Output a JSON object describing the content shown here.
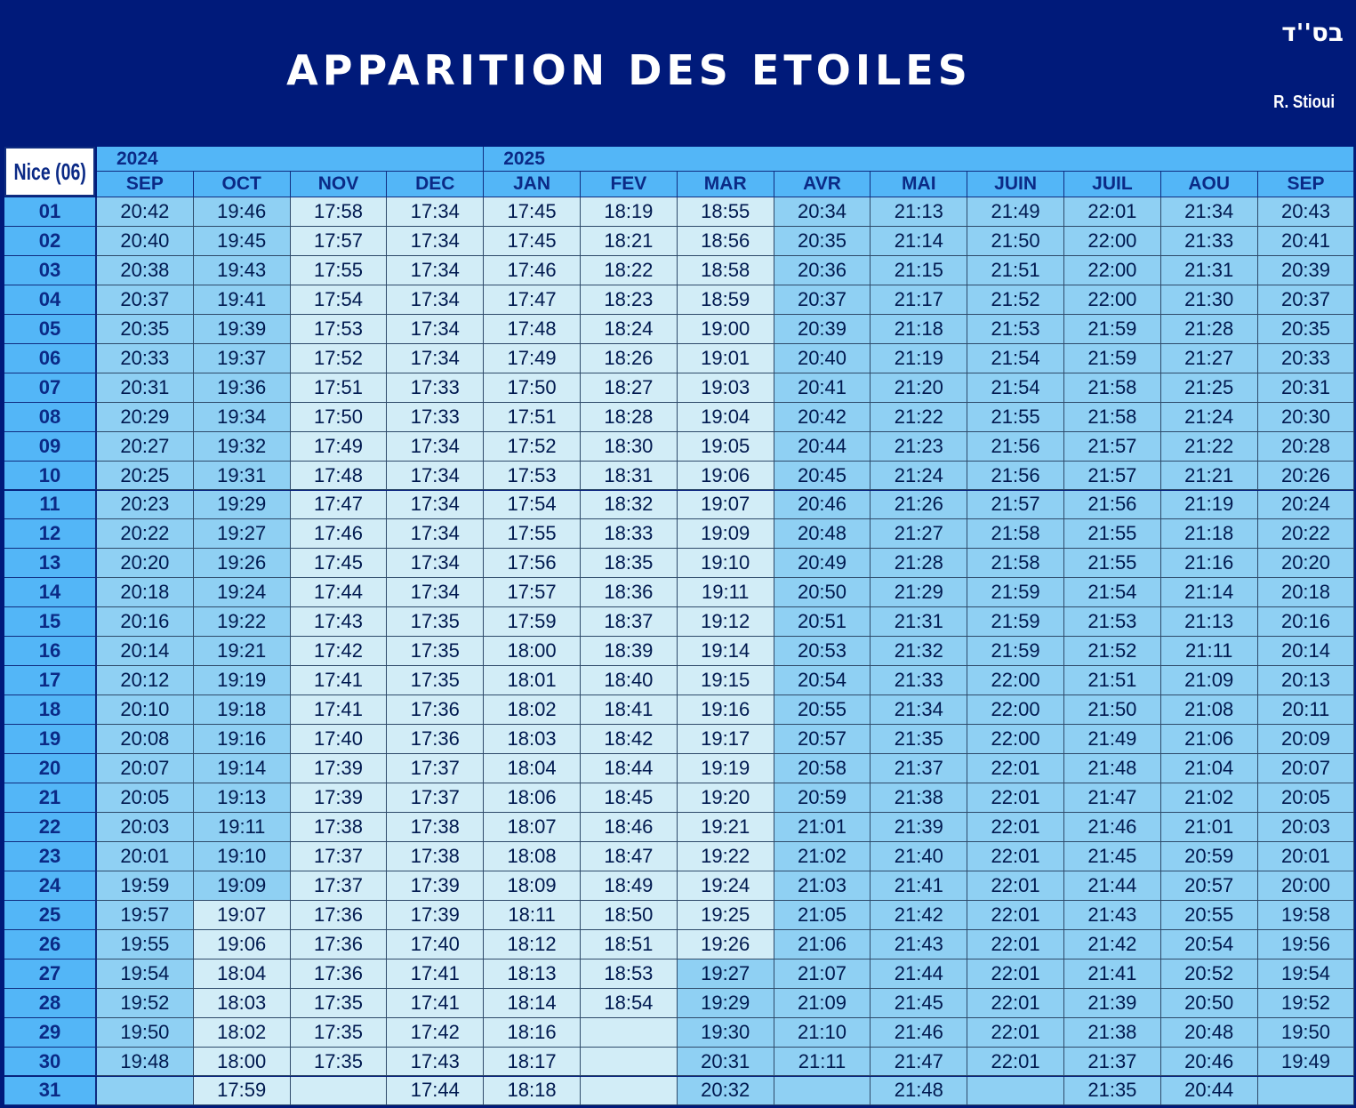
{
  "header": {
    "title": "APPARITION DES ETOILES",
    "hebrew": "בס''ד",
    "author": "R. Stioui",
    "city": "Nice (06)"
  },
  "colors": {
    "navy": "#001a7a",
    "header_blue": "#53b6f7",
    "mid_blue": "#8fd0f3",
    "pale_blue": "#d2edf7"
  },
  "table": {
    "years": [
      {
        "label": "2024",
        "span": 4
      },
      {
        "label": "2025",
        "span": 9
      }
    ],
    "months": [
      "SEP",
      "OCT",
      "NOV",
      "DEC",
      "JAN",
      "FEV",
      "MAR",
      "AVR",
      "MAI",
      "JUIN",
      "JUIL",
      "AOU",
      "SEP"
    ],
    "days": [
      "01",
      "02",
      "03",
      "04",
      "05",
      "06",
      "07",
      "08",
      "09",
      "10",
      "11",
      "12",
      "13",
      "14",
      "15",
      "16",
      "17",
      "18",
      "19",
      "20",
      "21",
      "22",
      "23",
      "24",
      "25",
      "26",
      "27",
      "28",
      "29",
      "30",
      "31"
    ],
    "columns": [
      [
        "20:42",
        "20:40",
        "20:38",
        "20:37",
        "20:35",
        "20:33",
        "20:31",
        "20:29",
        "20:27",
        "20:25",
        "20:23",
        "20:22",
        "20:20",
        "20:18",
        "20:16",
        "20:14",
        "20:12",
        "20:10",
        "20:08",
        "20:07",
        "20:05",
        "20:03",
        "20:01",
        "19:59",
        "19:57",
        "19:55",
        "19:54",
        "19:52",
        "19:50",
        "19:48",
        ""
      ],
      [
        "19:46",
        "19:45",
        "19:43",
        "19:41",
        "19:39",
        "19:37",
        "19:36",
        "19:34",
        "19:32",
        "19:31",
        "19:29",
        "19:27",
        "19:26",
        "19:24",
        "19:22",
        "19:21",
        "19:19",
        "19:18",
        "19:16",
        "19:14",
        "19:13",
        "19:11",
        "19:10",
        "19:09",
        "19:07",
        "19:06",
        "18:04",
        "18:03",
        "18:02",
        "18:00",
        "17:59"
      ],
      [
        "17:58",
        "17:57",
        "17:55",
        "17:54",
        "17:53",
        "17:52",
        "17:51",
        "17:50",
        "17:49",
        "17:48",
        "17:47",
        "17:46",
        "17:45",
        "17:44",
        "17:43",
        "17:42",
        "17:41",
        "17:41",
        "17:40",
        "17:39",
        "17:39",
        "17:38",
        "17:37",
        "17:37",
        "17:36",
        "17:36",
        "17:36",
        "17:35",
        "17:35",
        "17:35",
        ""
      ],
      [
        "17:34",
        "17:34",
        "17:34",
        "17:34",
        "17:34",
        "17:34",
        "17:33",
        "17:33",
        "17:34",
        "17:34",
        "17:34",
        "17:34",
        "17:34",
        "17:34",
        "17:35",
        "17:35",
        "17:35",
        "17:36",
        "17:36",
        "17:37",
        "17:37",
        "17:38",
        "17:38",
        "17:39",
        "17:39",
        "17:40",
        "17:41",
        "17:41",
        "17:42",
        "17:43",
        "17:44"
      ],
      [
        "17:45",
        "17:45",
        "17:46",
        "17:47",
        "17:48",
        "17:49",
        "17:50",
        "17:51",
        "17:52",
        "17:53",
        "17:54",
        "17:55",
        "17:56",
        "17:57",
        "17:59",
        "18:00",
        "18:01",
        "18:02",
        "18:03",
        "18:04",
        "18:06",
        "18:07",
        "18:08",
        "18:09",
        "18:11",
        "18:12",
        "18:13",
        "18:14",
        "18:16",
        "18:17",
        "18:18"
      ],
      [
        "18:19",
        "18:21",
        "18:22",
        "18:23",
        "18:24",
        "18:26",
        "18:27",
        "18:28",
        "18:30",
        "18:31",
        "18:32",
        "18:33",
        "18:35",
        "18:36",
        "18:37",
        "18:39",
        "18:40",
        "18:41",
        "18:42",
        "18:44",
        "18:45",
        "18:46",
        "18:47",
        "18:49",
        "18:50",
        "18:51",
        "18:53",
        "18:54",
        "",
        "",
        ""
      ],
      [
        "18:55",
        "18:56",
        "18:58",
        "18:59",
        "19:00",
        "19:01",
        "19:03",
        "19:04",
        "19:05",
        "19:06",
        "19:07",
        "19:09",
        "19:10",
        "19:11",
        "19:12",
        "19:14",
        "19:15",
        "19:16",
        "19:17",
        "19:19",
        "19:20",
        "19:21",
        "19:22",
        "19:24",
        "19:25",
        "19:26",
        "19:27",
        "19:29",
        "19:30",
        "20:31",
        "20:32"
      ],
      [
        "20:34",
        "20:35",
        "20:36",
        "20:37",
        "20:39",
        "20:40",
        "20:41",
        "20:42",
        "20:44",
        "20:45",
        "20:46",
        "20:48",
        "20:49",
        "20:50",
        "20:51",
        "20:53",
        "20:54",
        "20:55",
        "20:57",
        "20:58",
        "20:59",
        "21:01",
        "21:02",
        "21:03",
        "21:05",
        "21:06",
        "21:07",
        "21:09",
        "21:10",
        "21:11",
        ""
      ],
      [
        "21:13",
        "21:14",
        "21:15",
        "21:17",
        "21:18",
        "21:19",
        "21:20",
        "21:22",
        "21:23",
        "21:24",
        "21:26",
        "21:27",
        "21:28",
        "21:29",
        "21:31",
        "21:32",
        "21:33",
        "21:34",
        "21:35",
        "21:37",
        "21:38",
        "21:39",
        "21:40",
        "21:41",
        "21:42",
        "21:43",
        "21:44",
        "21:45",
        "21:46",
        "21:47",
        "21:48"
      ],
      [
        "21:49",
        "21:50",
        "21:51",
        "21:52",
        "21:53",
        "21:54",
        "21:54",
        "21:55",
        "21:56",
        "21:56",
        "21:57",
        "21:58",
        "21:58",
        "21:59",
        "21:59",
        "21:59",
        "22:00",
        "22:00",
        "22:00",
        "22:01",
        "22:01",
        "22:01",
        "22:01",
        "22:01",
        "22:01",
        "22:01",
        "22:01",
        "22:01",
        "22:01",
        "22:01",
        ""
      ],
      [
        "22:01",
        "22:00",
        "22:00",
        "22:00",
        "21:59",
        "21:59",
        "21:58",
        "21:58",
        "21:57",
        "21:57",
        "21:56",
        "21:55",
        "21:55",
        "21:54",
        "21:53",
        "21:52",
        "21:51",
        "21:50",
        "21:49",
        "21:48",
        "21:47",
        "21:46",
        "21:45",
        "21:44",
        "21:43",
        "21:42",
        "21:41",
        "21:39",
        "21:38",
        "21:37",
        "21:35"
      ],
      [
        "21:34",
        "21:33",
        "21:31",
        "21:30",
        "21:28",
        "21:27",
        "21:25",
        "21:24",
        "21:22",
        "21:21",
        "21:19",
        "21:18",
        "21:16",
        "21:14",
        "21:13",
        "21:11",
        "21:09",
        "21:08",
        "21:06",
        "21:04",
        "21:02",
        "21:01",
        "20:59",
        "20:57",
        "20:55",
        "20:54",
        "20:52",
        "20:50",
        "20:48",
        "20:46",
        "20:44"
      ],
      [
        "20:43",
        "20:41",
        "20:39",
        "20:37",
        "20:35",
        "20:33",
        "20:31",
        "20:30",
        "20:28",
        "20:26",
        "20:24",
        "20:22",
        "20:20",
        "20:18",
        "20:16",
        "20:14",
        "20:13",
        "20:11",
        "20:09",
        "20:07",
        "20:05",
        "20:03",
        "20:01",
        "20:00",
        "19:58",
        "19:56",
        "19:54",
        "19:52",
        "19:50",
        "19:49",
        ""
      ]
    ]
  }
}
